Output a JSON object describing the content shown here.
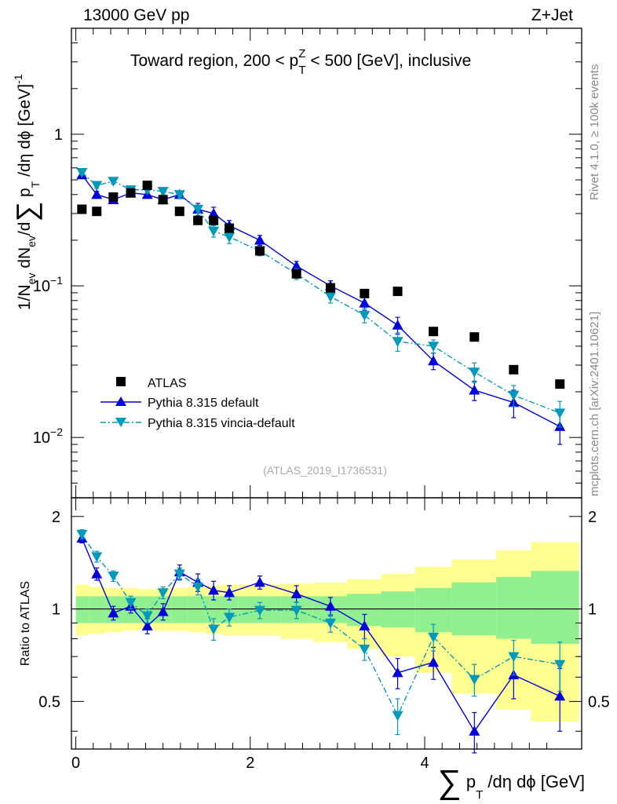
{
  "header": {
    "left": "13000 GeV pp",
    "right": "Z+Jet"
  },
  "side": {
    "rivet": "Rivet 4.1.0, ≥ 100k events",
    "mcplots": "mcplots.cern.ch [arXiv:2401.10621]"
  },
  "colors": {
    "atlas": "#000000",
    "default": "#0000dd",
    "vincia": "#0099bb",
    "band_inner": "#90f090",
    "band_outer": "#ffff90"
  },
  "chart_data": [
    {
      "type": "scatter",
      "title": "Toward region, 200 < p_T^Z < 500 [GeV], inclusive",
      "title_parts": {
        "pre": "Toward region, 200 < p",
        "sup": "Z",
        "sub": "T",
        "post": " < 500 [GeV], inclusive"
      },
      "ylabel": "1/N_ev dN_ev/d∑ p_T /dη dϕ [GeV]^-1",
      "ylabel_parts": {
        "a": "1/N",
        "ev1": "ev",
        "b": " dN",
        "ev2": "ev",
        "c": "/d",
        "sigma": "∑",
        "d": " p",
        "t": "T",
        "e": " /dη dϕ  [GeV]",
        "exp": "-1"
      },
      "yscale": "log",
      "ylim": [
        0.004,
        5
      ],
      "xlim": [
        -0.05,
        5.8
      ],
      "yticks": [
        {
          "v": 1,
          "base": "1",
          "exp": ""
        },
        {
          "v": 0.1,
          "base": "10",
          "exp": "−1"
        },
        {
          "v": 0.01,
          "base": "10",
          "exp": "−2"
        }
      ],
      "watermark": "(ATLAS_2019_I1736531)",
      "legend": {
        "position": "lower-left",
        "entries": [
          "ATLAS",
          "Pythia 8.315 default",
          "Pythia 8.315 vincia-default"
        ]
      },
      "series": [
        {
          "name": "ATLAS",
          "x": [
            0.07,
            0.24,
            0.43,
            0.63,
            0.82,
            1.0,
            1.19,
            1.4,
            1.58,
            1.76,
            2.11,
            2.53,
            2.92,
            3.31,
            3.69,
            4.1,
            4.57,
            5.02,
            5.55
          ],
          "y": [
            0.32,
            0.31,
            0.385,
            0.41,
            0.46,
            0.37,
            0.31,
            0.27,
            0.27,
            0.24,
            0.17,
            0.12,
            0.097,
            0.089,
            0.092,
            0.05,
            0.046,
            0.028,
            0.0225
          ]
        },
        {
          "name": "Pythia 8.315 default",
          "x": [
            0.07,
            0.24,
            0.43,
            0.63,
            0.82,
            1.0,
            1.19,
            1.4,
            1.58,
            1.76,
            2.11,
            2.53,
            2.92,
            3.31,
            3.69,
            4.1,
            4.57,
            5.02,
            5.55
          ],
          "y": [
            0.54,
            0.4,
            0.37,
            0.41,
            0.4,
            0.37,
            0.4,
            0.32,
            0.3,
            0.25,
            0.2,
            0.135,
            0.1,
            0.077,
            0.055,
            0.032,
            0.0205,
            0.017,
            0.0118
          ],
          "err": [
            0.02,
            0.02,
            0.02,
            0.02,
            0.02,
            0.02,
            0.02,
            0.03,
            0.03,
            0.02,
            0.015,
            0.01,
            0.008,
            0.008,
            0.007,
            0.004,
            0.003,
            0.0035,
            0.0028
          ]
        },
        {
          "name": "Pythia 8.315 vincia-default",
          "x": [
            0.07,
            0.24,
            0.43,
            0.63,
            0.82,
            1.0,
            1.19,
            1.4,
            1.58,
            1.76,
            2.11,
            2.53,
            2.92,
            3.31,
            3.69,
            4.1,
            4.57,
            5.02,
            5.55
          ],
          "y": [
            0.56,
            0.46,
            0.49,
            0.43,
            0.43,
            0.42,
            0.4,
            0.32,
            0.23,
            0.21,
            0.17,
            0.12,
            0.085,
            0.064,
            0.043,
            0.04,
            0.027,
            0.019,
            0.0145
          ],
          "err": [
            0.02,
            0.02,
            0.02,
            0.02,
            0.02,
            0.02,
            0.02,
            0.02,
            0.02,
            0.02,
            0.012,
            0.01,
            0.008,
            0.007,
            0.006,
            0.004,
            0.004,
            0.003,
            0.0028
          ]
        }
      ]
    },
    {
      "type": "scatter",
      "ylabel": "Ratio to ATLAS",
      "xlabel": "∑ p_T /dη dϕ [GeV]",
      "xlabel_parts": {
        "sigma": "∑",
        "p": " p",
        "t": "T",
        "rest": " /dη dϕ [GeV]"
      },
      "xlim": [
        -0.05,
        5.8
      ],
      "ylim": [
        0.35,
        2.3
      ],
      "yscale": "log",
      "xticks": [
        0,
        2,
        4
      ],
      "yticks": [
        0.5,
        1,
        2
      ],
      "bin_edges": [
        0,
        0.15,
        0.34,
        0.53,
        0.72,
        0.91,
        1.1,
        1.29,
        1.49,
        1.67,
        1.86,
        2.35,
        2.72,
        3.11,
        3.5,
        3.89,
        4.31,
        4.82,
        5.22,
        5.77
      ],
      "band_inner_lo": [
        0.9,
        0.9,
        0.9,
        0.9,
        0.9,
        0.9,
        0.9,
        0.9,
        0.9,
        0.9,
        0.9,
        0.9,
        0.9,
        0.88,
        0.87,
        0.84,
        0.82,
        0.8,
        0.77
      ],
      "band_inner_hi": [
        1.1,
        1.1,
        1.1,
        1.1,
        1.1,
        1.1,
        1.1,
        1.1,
        1.1,
        1.1,
        1.1,
        1.1,
        1.1,
        1.12,
        1.14,
        1.17,
        1.22,
        1.27,
        1.33
      ],
      "band_outer_lo": [
        0.82,
        0.83,
        0.84,
        0.85,
        0.86,
        0.85,
        0.85,
        0.84,
        0.83,
        0.82,
        0.82,
        0.8,
        0.78,
        0.74,
        0.7,
        0.62,
        0.53,
        0.47,
        0.43
      ],
      "band_outer_hi": [
        1.2,
        1.18,
        1.17,
        1.17,
        1.16,
        1.17,
        1.17,
        1.18,
        1.19,
        1.2,
        1.2,
        1.21,
        1.22,
        1.25,
        1.3,
        1.37,
        1.45,
        1.55,
        1.65
      ],
      "series": [
        {
          "name": "Pythia 8.315 default",
          "x": [
            0.07,
            0.24,
            0.43,
            0.63,
            0.82,
            1.0,
            1.19,
            1.4,
            1.58,
            1.76,
            2.11,
            2.53,
            2.92,
            3.31,
            3.69,
            4.1,
            4.57,
            5.02,
            5.55
          ],
          "y": [
            1.7,
            1.3,
            0.97,
            1.02,
            0.88,
            0.98,
            1.32,
            1.22,
            1.15,
            1.13,
            1.22,
            1.12,
            1.02,
            0.88,
            0.62,
            0.67,
            0.4,
            0.61,
            0.52
          ],
          "err": [
            0.06,
            0.06,
            0.05,
            0.05,
            0.05,
            0.06,
            0.07,
            0.08,
            0.08,
            0.06,
            0.06,
            0.07,
            0.07,
            0.08,
            0.07,
            0.08,
            0.06,
            0.1,
            0.12
          ]
        },
        {
          "name": "Pythia 8.315 vincia-default",
          "x": [
            0.07,
            0.24,
            0.43,
            0.63,
            0.82,
            1.0,
            1.19,
            1.4,
            1.58,
            1.76,
            2.11,
            2.53,
            2.92,
            3.31,
            3.69,
            4.1,
            4.57,
            5.02,
            5.55
          ],
          "y": [
            1.75,
            1.48,
            1.28,
            1.05,
            0.95,
            1.13,
            1.3,
            1.18,
            0.86,
            0.94,
            0.99,
            0.99,
            0.9,
            0.74,
            0.45,
            0.81,
            0.59,
            0.7,
            0.66
          ],
          "err": [
            0.06,
            0.06,
            0.05,
            0.05,
            0.05,
            0.05,
            0.06,
            0.07,
            0.07,
            0.06,
            0.06,
            0.06,
            0.06,
            0.06,
            0.06,
            0.08,
            0.07,
            0.09,
            0.12
          ]
        }
      ]
    }
  ]
}
